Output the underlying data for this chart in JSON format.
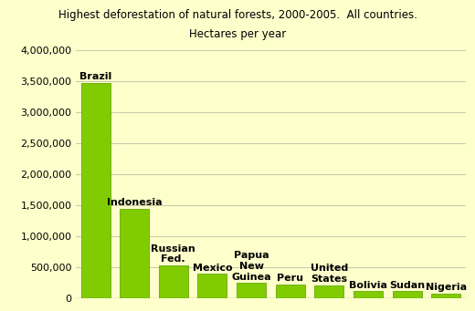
{
  "title1": "Highest deforestation of natural forests, 2000-2005.  All countries.",
  "title2": "Hectares per year",
  "categories": [
    "Brazil",
    "Indonesia",
    "Russian\nFed.",
    "Mexico",
    "Papua\nNew\nGuinea",
    "Peru",
    "United\nStates",
    "Bolivia",
    "Sudan",
    "Nigeria"
  ],
  "values": [
    3466000,
    1447800,
    532000,
    395000,
    250000,
    224000,
    215000,
    117000,
    117000,
    82000
  ],
  "bar_color": "#80cc00",
  "bar_edge_color": "#5a9a00",
  "background_color": "#ffffcc",
  "plot_bg_color": "#ffffcc",
  "ylim": [
    0,
    4000000
  ],
  "yticks": [
    0,
    500000,
    1000000,
    1500000,
    2000000,
    2500000,
    3000000,
    3500000,
    4000000
  ],
  "title_fontsize": 8.5,
  "label_fontsize": 8,
  "tick_fontsize": 8,
  "grid_color": "#ccccaa",
  "bar_width": 0.75
}
